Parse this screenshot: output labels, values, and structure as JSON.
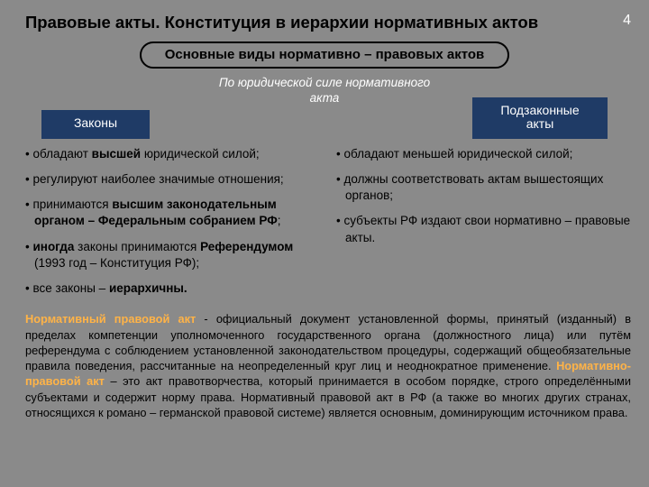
{
  "colors": {
    "page_bg": "#8a8a8a",
    "branch_bg": "#1f3b66",
    "branch_text": "#ffffff",
    "term_color": "#ffb347",
    "text_color": "#000000",
    "classifier_color": "#ffffff"
  },
  "title": "Правовые акты. Конституция в иерархии нормативных актов",
  "page_number": "4",
  "subtitle": "Основные виды нормативно – правовых актов",
  "classifier_line1": "По юридической силе нормативного",
  "classifier_line2": "акта",
  "branch_left": "Законы",
  "branch_right_line1": "Подзаконные",
  "branch_right_line2": "акты",
  "left_bullets": [
    "обладают <b>высшей</b> юридической силой;",
    "регулируют наиболее значимые отношения;",
    "принимаются <b>высшим законодательным органом – Федеральным собранием РФ</b>;",
    "<b>иногда</b> законы принимаются <b>Референдумом</b> (1993 год – Конституция РФ);",
    "все законы – <b>иерархичны.</b>"
  ],
  "right_bullets": [
    "обладают меньшей юридической силой;",
    "должны соответствовать актам вышестоящих органов;",
    "субъекты РФ издают свои нормативно – правовые акты."
  ],
  "definition_html": "<span class=\"term\">Нормативный правовой акт</span> - официальный документ установленной формы, принятый (изданный) в пределах компетенции уполномоченного государственного органа (должностного лица) или путём референдума с соблюдением установленной законодательством процедуры, содержащий общеобязательные правила поведения, рассчитанные на неопределенный круг лиц и неоднократное применение. <span class=\"term\">Нормативно-правовой акт</span> – это акт правотворчества, который принимается в особом порядке, строго определёнными субъектами и содержит норму права. Нормативный правовой акт в РФ (а также во многих других странах, относящихся к романо – германской правовой системе) является основным, доминирующим источником права."
}
